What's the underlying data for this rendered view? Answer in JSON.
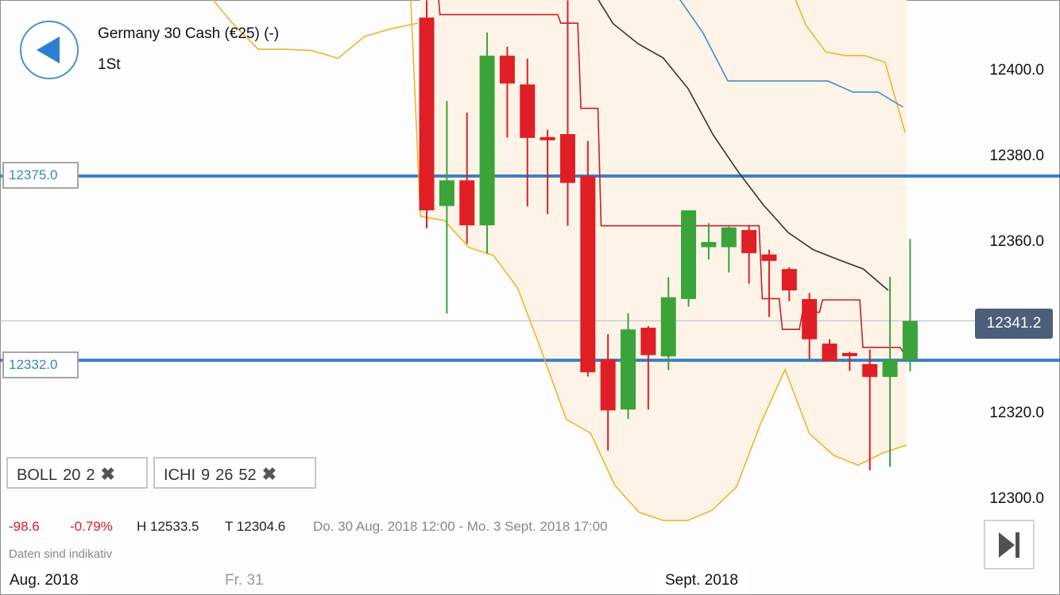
{
  "header": {
    "instrument": "Germany 30 Cash (€25) (-)",
    "timeframe": "1St"
  },
  "price_lines": [
    {
      "label": "12375.0",
      "value": 12375.0,
      "color": "#3b7fc0"
    },
    {
      "label": "12332.0",
      "value": 12332.0,
      "color": "#3b7fc0"
    }
  ],
  "current_price": {
    "label": "12341.2",
    "value": 12341.2
  },
  "indicators": [
    {
      "name": "BOLL",
      "params": [
        "20",
        "2"
      ],
      "close": "✖"
    },
    {
      "name": "ICHI",
      "params": [
        "9",
        "26",
        "52"
      ],
      "close": "✖"
    }
  ],
  "stats": {
    "change": "-98.6",
    "change_pct": "-0.79%",
    "high": "H 12533.5",
    "low": "T 12304.6",
    "range": "Do. 30 Aug. 2018 12:00 - Mo. 3 Sept. 2018 17:00",
    "disclaimer": "Daten sind indikativ"
  },
  "time_axis": {
    "month_left": "Aug. 2018",
    "day_mid": "Fr. 31",
    "month_right": "Sept. 2018"
  },
  "colors": {
    "up": "#3aa33a",
    "down": "#e01e26",
    "bollinger": "#f3b22b",
    "tenkan": "#c41f2b",
    "kijun": "#333333",
    "senkou": "#3d8ed0",
    "price_line": "#3b7fc0"
  },
  "icons": {
    "back": "back-arrow-icon",
    "skip_to_end": "skip-to-end-icon",
    "close": "close-icon"
  },
  "chart_data": {
    "type": "candlestick",
    "y_ticks": [
      12400.0,
      12380.0,
      12360.0,
      12340.0,
      12320.0,
      12300.0
    ],
    "y_tick_labels": [
      "12400.0",
      "12380.0",
      "12360.0",
      "12340.0",
      "12320.0",
      "12300.0"
    ],
    "ylim": [
      12283.5,
      12416.1
    ],
    "x_labels": [
      "Aug. 2018",
      "Fr. 31",
      "Sept. 2018"
    ],
    "candles": [
      {
        "o": 12412.0,
        "h": 12416.0,
        "l": 12362.8,
        "c": 12367.0
      },
      {
        "o": 12368.0,
        "h": 12392.5,
        "l": 12342.9,
        "c": 12374.0
      },
      {
        "o": 12374.0,
        "h": 12389.8,
        "l": 12359.2,
        "c": 12363.5
      },
      {
        "o": 12363.5,
        "h": 12408.5,
        "l": 12356.9,
        "c": 12403.1
      },
      {
        "o": 12403.1,
        "h": 12405.2,
        "l": 12384.0,
        "c": 12396.6
      },
      {
        "o": 12396.4,
        "h": 12402.4,
        "l": 12367.9,
        "c": 12383.9
      },
      {
        "o": 12384.1,
        "h": 12385.8,
        "l": 12366.1,
        "c": 12383.5
      },
      {
        "o": 12384.8,
        "h": 12416.0,
        "l": 12363.4,
        "c": 12373.4
      },
      {
        "o": 12375.0,
        "h": 12383.2,
        "l": 12328.2,
        "c": 12329.2
      },
      {
        "o": 12332.2,
        "h": 12338.1,
        "l": 12310.9,
        "c": 12320.3
      },
      {
        "o": 12320.5,
        "h": 12343.0,
        "l": 12318.3,
        "c": 12339.2
      },
      {
        "o": 12339.6,
        "h": 12340.0,
        "l": 12320.5,
        "c": 12333.2
      },
      {
        "o": 12332.9,
        "h": 12351.4,
        "l": 12329.7,
        "c": 12346.7
      },
      {
        "o": 12346.3,
        "h": 12366.8,
        "l": 12344.5,
        "c": 12367.0
      },
      {
        "o": 12358.4,
        "h": 12364.0,
        "l": 12355.5,
        "c": 12359.6
      },
      {
        "o": 12358.4,
        "h": 12363.2,
        "l": 12352.5,
        "c": 12363.0
      },
      {
        "o": 12362.4,
        "h": 12363.4,
        "l": 12349.9,
        "c": 12357.0
      },
      {
        "o": 12356.7,
        "h": 12357.8,
        "l": 12342.1,
        "c": 12355.2
      },
      {
        "o": 12353.3,
        "h": 12353.7,
        "l": 12345.8,
        "c": 12348.3
      },
      {
        "o": 12346.3,
        "h": 12347.7,
        "l": 12332.3,
        "c": 12336.9
      },
      {
        "o": 12335.9,
        "h": 12336.9,
        "l": 12332.5,
        "c": 12331.8
      },
      {
        "o": 12333.7,
        "h": 12334.0,
        "l": 12329.5,
        "c": 12333.0
      },
      {
        "o": 12331.1,
        "h": 12334.5,
        "l": 12306.3,
        "c": 12328.1
      },
      {
        "o": 12328.1,
        "h": 12351.5,
        "l": 12307.1,
        "c": 12332.1
      },
      {
        "o": 12332.1,
        "h": 12360.3,
        "l": 12329.4,
        "c": 12341.2
      }
    ],
    "bollinger": {
      "upper_left": [
        12418.4,
        12410.9,
        12404.6,
        12404.6,
        12404.3,
        12402.5,
        12407.6,
        12409.4,
        12410.7
      ],
      "upper_right": [
        12421.8,
        12410.3,
        12404.0,
        12403.1,
        12403.1,
        12401.5,
        12385.2
      ],
      "lower": [
        12365.6,
        12364.6,
        12358.3,
        12356.5,
        12348.9,
        12333.9,
        12318.2,
        12315.0,
        12302.8,
        12296.5,
        12294.6,
        12294.6,
        12297.0,
        12302.4,
        12317.3,
        12329.8,
        12314.9,
        12309.8,
        12307.5,
        12310.3,
        12312.2
      ]
    },
    "ichimoku": {
      "tenkan": [
        12421.0,
        12412.7,
        12412.7,
        12412.7,
        12412.7,
        12412.7,
        12412.7,
        12410.7,
        12390.8,
        12363.4,
        12363.4,
        12363.4,
        12363.4,
        12363.4,
        12363.4,
        12363.4,
        12363.4,
        12346.4,
        12339.2,
        12343.2,
        12346.1,
        12346.1,
        12335.0,
        12335.0,
        12333.9
      ],
      "kijun": [
        12420.0,
        12410.6,
        12405.9,
        12402.6,
        12395.4,
        12384.6,
        12376.0,
        12368.3,
        12361.8,
        12357.8,
        12355.5,
        12353.3,
        12348.3
      ],
      "senkou": [
        12419.7,
        12416.9,
        12416.9,
        12408.5,
        12397.2,
        12397.2,
        12397.2,
        12397.2,
        12397.2,
        12394.6,
        12394.6,
        12391.1
      ]
    }
  }
}
